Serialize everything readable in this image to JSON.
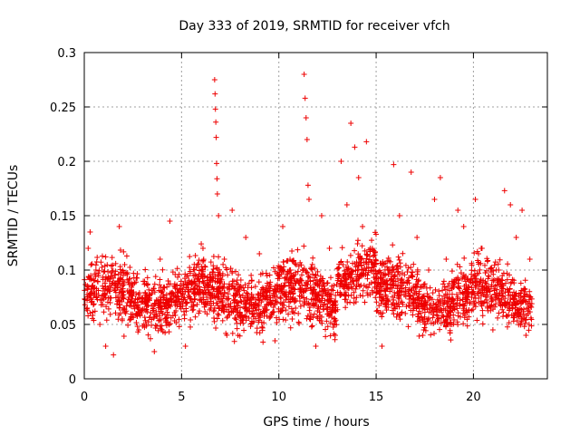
{
  "chart_data": {
    "type": "scatter",
    "title": "Day 333 of 2019, SRMTID for receiver vfch",
    "xlabel": "GPS time / hours",
    "ylabel": "SRMTID / TECUs",
    "xlim": [
      0,
      23.8
    ],
    "ylim": [
      0,
      0.3
    ],
    "xticks": [
      0,
      5,
      10,
      15,
      20
    ],
    "xtick_labels": [
      "0",
      "5",
      "10",
      "15",
      "20"
    ],
    "yticks": [
      0,
      0.05,
      0.1,
      0.15,
      0.2,
      0.25,
      0.3
    ],
    "ytick_labels": [
      "0",
      "0.05",
      "0.1",
      "0.15",
      "0.2",
      "0.25",
      "0.3"
    ],
    "grid": true,
    "marker": "+",
    "marker_color": "#ee0000",
    "x_range_of_points": [
      0,
      23
    ],
    "series": [
      {
        "name": "SRMTID",
        "points": [
          [
            0.2,
            0.12
          ],
          [
            0.3,
            0.135
          ],
          [
            0.4,
            0.085
          ],
          [
            0.6,
            0.1
          ],
          [
            0.8,
            0.05
          ],
          [
            1.1,
            0.03
          ],
          [
            1.5,
            0.022
          ],
          [
            1.8,
            0.14
          ],
          [
            2.0,
            0.095
          ],
          [
            2.4,
            0.07
          ],
          [
            2.8,
            0.045
          ],
          [
            3.2,
            0.05
          ],
          [
            3.6,
            0.025
          ],
          [
            3.9,
            0.11
          ],
          [
            4.4,
            0.145
          ],
          [
            4.8,
            0.08
          ],
          [
            5.2,
            0.03
          ],
          [
            5.6,
            0.095
          ],
          [
            6.1,
            0.12
          ],
          [
            6.5,
            0.065
          ],
          [
            6.7,
            0.275
          ],
          [
            6.72,
            0.262
          ],
          [
            6.74,
            0.248
          ],
          [
            6.76,
            0.236
          ],
          [
            6.78,
            0.222
          ],
          [
            6.8,
            0.198
          ],
          [
            6.82,
            0.184
          ],
          [
            6.84,
            0.17
          ],
          [
            6.9,
            0.15
          ],
          [
            7.2,
            0.11
          ],
          [
            7.6,
            0.155
          ],
          [
            7.9,
            0.04
          ],
          [
            8.3,
            0.13
          ],
          [
            8.6,
            0.09
          ],
          [
            9.0,
            0.115
          ],
          [
            9.4,
            0.075
          ],
          [
            9.8,
            0.035
          ],
          [
            10.2,
            0.14
          ],
          [
            10.6,
            0.1
          ],
          [
            11.0,
            0.06
          ],
          [
            11.3,
            0.28
          ],
          [
            11.35,
            0.258
          ],
          [
            11.4,
            0.24
          ],
          [
            11.45,
            0.22
          ],
          [
            11.5,
            0.178
          ],
          [
            11.55,
            0.165
          ],
          [
            11.9,
            0.03
          ],
          [
            12.2,
            0.15
          ],
          [
            12.6,
            0.12
          ],
          [
            12.9,
            0.04
          ],
          [
            13.2,
            0.2
          ],
          [
            13.5,
            0.16
          ],
          [
            13.7,
            0.235
          ],
          [
            13.9,
            0.213
          ],
          [
            14.1,
            0.185
          ],
          [
            14.3,
            0.14
          ],
          [
            14.5,
            0.218
          ],
          [
            14.7,
            0.12
          ],
          [
            15.0,
            0.08
          ],
          [
            15.3,
            0.03
          ],
          [
            15.6,
            0.1
          ],
          [
            15.9,
            0.197
          ],
          [
            16.2,
            0.15
          ],
          [
            16.5,
            0.06
          ],
          [
            16.8,
            0.19
          ],
          [
            17.1,
            0.13
          ],
          [
            17.4,
            0.04
          ],
          [
            17.7,
            0.1
          ],
          [
            18.0,
            0.165
          ],
          [
            18.3,
            0.185
          ],
          [
            18.6,
            0.11
          ],
          [
            18.9,
            0.05
          ],
          [
            19.2,
            0.155
          ],
          [
            19.5,
            0.14
          ],
          [
            19.8,
            0.09
          ],
          [
            20.1,
            0.165
          ],
          [
            20.4,
            0.12
          ],
          [
            20.7,
            0.07
          ],
          [
            21.0,
            0.045
          ],
          [
            21.3,
            0.1
          ],
          [
            21.6,
            0.173
          ],
          [
            21.9,
            0.16
          ],
          [
            22.2,
            0.13
          ],
          [
            22.5,
            0.155
          ],
          [
            22.7,
            0.04
          ],
          [
            22.9,
            0.11
          ]
        ]
      }
    ]
  }
}
